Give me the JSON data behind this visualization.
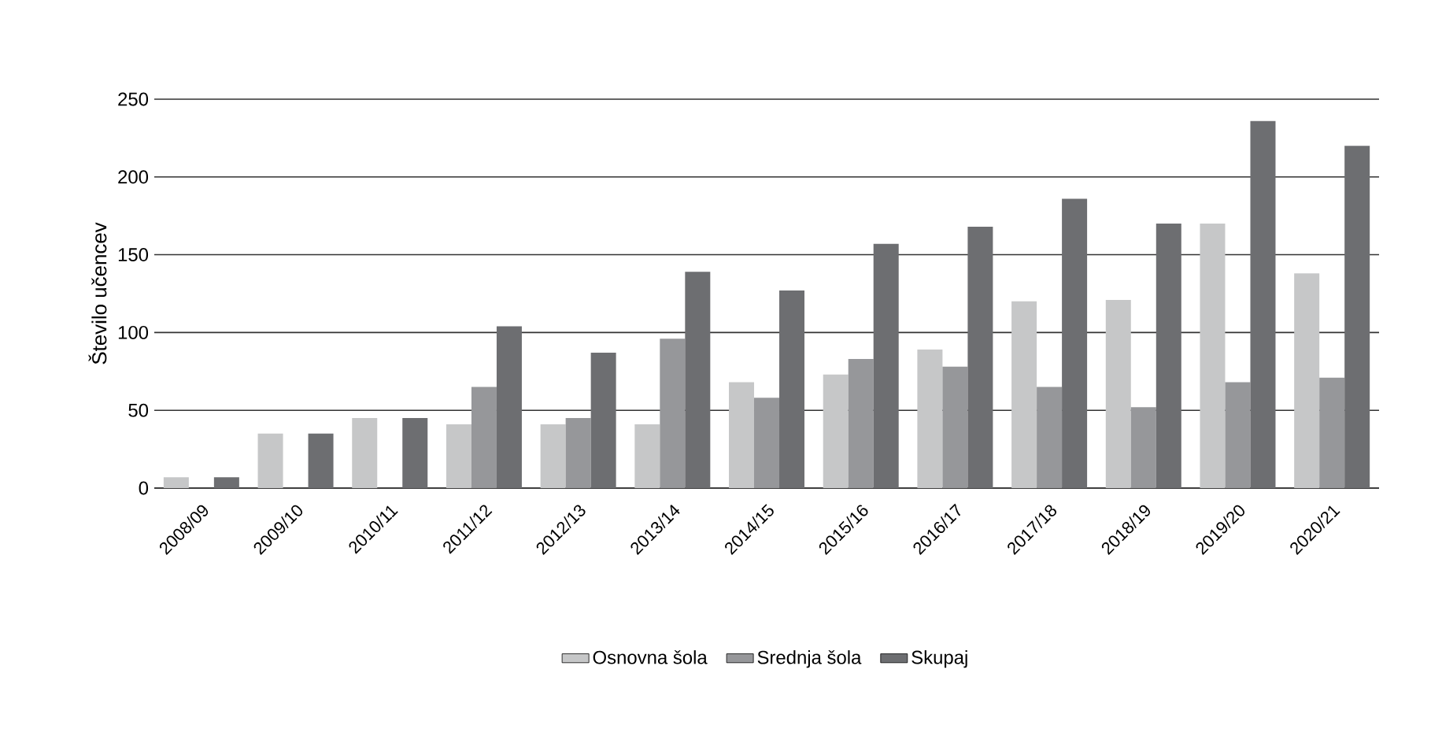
{
  "chart_data": {
    "type": "bar",
    "ylabel": "Število učencev",
    "categories": [
      "2008/09",
      "2009/10",
      "2010/11",
      "2011/12",
      "2012/13",
      "2013/14",
      "2014/15",
      "2015/16",
      "2016/17",
      "2017/18",
      "2018/19",
      "2019/20",
      "2020/21"
    ],
    "series": [
      {
        "name": "Osnovna šola",
        "color": "#c6c7c8",
        "values": [
          7,
          35,
          45,
          41,
          41,
          41,
          68,
          73,
          89,
          120,
          121,
          170,
          138
        ]
      },
      {
        "name": "Srednja šola",
        "color": "#96979a",
        "values": [
          null,
          null,
          null,
          65,
          45,
          96,
          58,
          83,
          78,
          65,
          52,
          68,
          71
        ]
      },
      {
        "name": "Skupaj",
        "color": "#6d6e71",
        "values": [
          7,
          35,
          45,
          104,
          87,
          139,
          127,
          157,
          168,
          186,
          170,
          236,
          220
        ]
      }
    ],
    "ylim": [
      0,
      250
    ],
    "yticks": [
      0,
      50,
      100,
      150,
      200,
      250
    ],
    "grid": "y",
    "legend": "bottom"
  }
}
